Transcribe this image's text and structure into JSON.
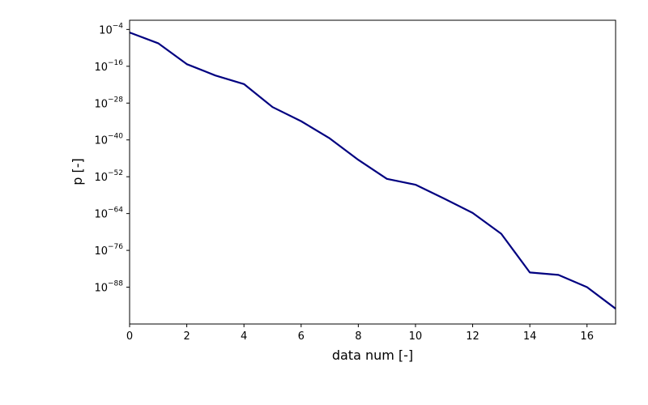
{
  "chart_data": {
    "type": "line",
    "title": "",
    "xlabel": "data num [-]",
    "ylabel": "p [-]",
    "xscale": "linear",
    "yscale": "log",
    "xlim": [
      0,
      17
    ],
    "ylim_exponent": [
      -100,
      -1
    ],
    "xticks": [
      0,
      2,
      4,
      6,
      8,
      10,
      12,
      14,
      16
    ],
    "xtick_labels": [
      "0",
      "2",
      "4",
      "6",
      "8",
      "10",
      "12",
      "14",
      "16"
    ],
    "yticks_exponent": [
      -4,
      -16,
      -28,
      -40,
      -52,
      -64,
      -76,
      -88
    ],
    "ytick_labels": [
      {
        "base": "10",
        "exp": "−4"
      },
      {
        "base": "10",
        "exp": "−16"
      },
      {
        "base": "10",
        "exp": "−28"
      },
      {
        "base": "10",
        "exp": "−40"
      },
      {
        "base": "10",
        "exp": "−52"
      },
      {
        "base": "10",
        "exp": "−64"
      },
      {
        "base": "10",
        "exp": "−76"
      },
      {
        "base": "10",
        "exp": "−88"
      }
    ],
    "grid": false,
    "legend": false,
    "series": [
      {
        "name": "p",
        "color": "#000080",
        "x": [
          0,
          1,
          2,
          3,
          4,
          5,
          6,
          7,
          8,
          9,
          10,
          11,
          12,
          13,
          14,
          15,
          16,
          17
        ],
        "y_log10": [
          -5,
          -8.5,
          -15.3,
          -19,
          -21.8,
          -29.3,
          -33.9,
          -39.5,
          -46.5,
          -52.7,
          -54.6,
          -59.1,
          -63.8,
          -70.6,
          -83.2,
          -84,
          -88,
          -95
        ]
      }
    ]
  }
}
